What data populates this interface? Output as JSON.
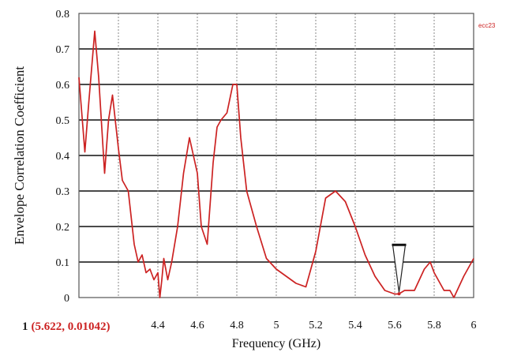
{
  "chart_data": {
    "type": "line",
    "xlabel": "Frequency (GHz)",
    "ylabel": "Envelope Correlation  Coefficient",
    "xlim": [
      4.0,
      6.0
    ],
    "ylim": [
      0,
      0.8
    ],
    "x_ticks": [
      "4.4",
      "4.6",
      "4.8",
      "5",
      "5.2",
      "5.4",
      "5.6",
      "5.8",
      "6"
    ],
    "x_tick_values": [
      4.4,
      4.6,
      4.8,
      5.0,
      5.2,
      5.4,
      5.6,
      5.8,
      6.0
    ],
    "y_ticks": [
      "0",
      "0.1",
      "0.2",
      "0.3",
      "0.4",
      "0.5",
      "0.6",
      "0.7",
      "0.8"
    ],
    "y_tick_values": [
      0,
      0.1,
      0.2,
      0.3,
      0.4,
      0.5,
      0.6,
      0.7,
      0.8
    ],
    "grid": true,
    "legend": "top-right",
    "trace_label": "ecc23",
    "series": [
      {
        "color": "#cc2222",
        "x": [
          4.0,
          4.03,
          4.05,
          4.08,
          4.1,
          4.13,
          4.15,
          4.17,
          4.2,
          4.22,
          4.25,
          4.28,
          4.3,
          4.32,
          4.34,
          4.36,
          4.38,
          4.4,
          4.41,
          4.42,
          4.43,
          4.45,
          4.47,
          4.5,
          4.53,
          4.56,
          4.6,
          4.62,
          4.65,
          4.68,
          4.7,
          4.72,
          4.75,
          4.78,
          4.8,
          4.82,
          4.85,
          4.9,
          4.95,
          5.0,
          5.05,
          5.1,
          5.15,
          5.2,
          5.25,
          5.3,
          5.35,
          5.4,
          5.45,
          5.5,
          5.55,
          5.6,
          5.62,
          5.65,
          5.7,
          5.75,
          5.78,
          5.8,
          5.85,
          5.88,
          5.9,
          5.95,
          6.0
        ],
        "y": [
          0.62,
          0.41,
          0.55,
          0.75,
          0.62,
          0.35,
          0.5,
          0.57,
          0.42,
          0.33,
          0.3,
          0.15,
          0.1,
          0.12,
          0.07,
          0.08,
          0.05,
          0.07,
          0.0,
          0.05,
          0.11,
          0.05,
          0.1,
          0.2,
          0.35,
          0.45,
          0.35,
          0.2,
          0.15,
          0.38,
          0.48,
          0.5,
          0.52,
          0.6,
          0.6,
          0.45,
          0.3,
          0.2,
          0.11,
          0.08,
          0.06,
          0.04,
          0.03,
          0.13,
          0.28,
          0.3,
          0.27,
          0.2,
          0.12,
          0.06,
          0.02,
          0.01,
          0.01,
          0.02,
          0.02,
          0.08,
          0.1,
          0.07,
          0.02,
          0.02,
          0.0,
          0.06,
          0.11
        ]
      }
    ],
    "marker": {
      "id": "1",
      "x": 5.622,
      "y": 0.01042,
      "readout": "(5.622, 0.01042)"
    }
  }
}
